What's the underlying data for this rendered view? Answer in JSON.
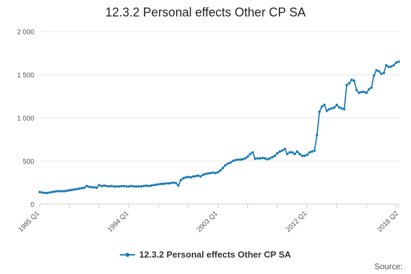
{
  "chart_data": {
    "type": "line",
    "title": "12.3.2 Personal effects Other CP SA",
    "xlabel": "",
    "ylabel": "",
    "ylim": [
      0,
      2000
    ],
    "y_ticks": [
      0,
      500,
      1000,
      1500,
      2000
    ],
    "y_tick_labels": [
      "0",
      "500",
      "1 000",
      "1 500",
      "2 000"
    ],
    "x_tick_labels": [
      "1985 Q1",
      "1994 Q1",
      "2003 Q1",
      "2012 Q1",
      "2018 Q2"
    ],
    "x_start": "1985 Q1",
    "x_end": "2018 Q2",
    "grid": true,
    "legend_position": "bottom",
    "color": "#1a7ab5",
    "series": [
      {
        "name": "12.3.2 Personal effects Other CP SA",
        "values": [
          140,
          135,
          130,
          130,
          135,
          140,
          145,
          150,
          150,
          150,
          150,
          155,
          160,
          165,
          170,
          175,
          180,
          185,
          190,
          210,
          200,
          195,
          195,
          190,
          220,
          210,
          215,
          210,
          205,
          210,
          205,
          205,
          205,
          208,
          210,
          205,
          205,
          210,
          205,
          205,
          205,
          205,
          210,
          215,
          210,
          215,
          220,
          225,
          230,
          235,
          235,
          240,
          240,
          245,
          248,
          245,
          215,
          280,
          300,
          310,
          315,
          310,
          320,
          325,
          330,
          320,
          340,
          350,
          355,
          360,
          365,
          360,
          370,
          390,
          420,
          450,
          470,
          480,
          500,
          510,
          515,
          515,
          520,
          530,
          550,
          580,
          600,
          525,
          530,
          530,
          535,
          530,
          520,
          530,
          545,
          560,
          590,
          610,
          620,
          640,
          580,
          600,
          600,
          580,
          610,
          580,
          560,
          560,
          570,
          600,
          610,
          620,
          800,
          1070,
          1130,
          1150,
          1080,
          1100,
          1110,
          1120,
          1150,
          1120,
          1110,
          1100,
          1380,
          1400,
          1440,
          1430,
          1320,
          1290,
          1300,
          1300,
          1290,
          1330,
          1350,
          1490,
          1550,
          1540,
          1510,
          1520,
          1610,
          1590,
          1595,
          1610,
          1640,
          1650
        ]
      }
    ]
  },
  "legend": {
    "label": "12.3.2 Personal effects Other CP SA"
  },
  "source_label": "Source:"
}
